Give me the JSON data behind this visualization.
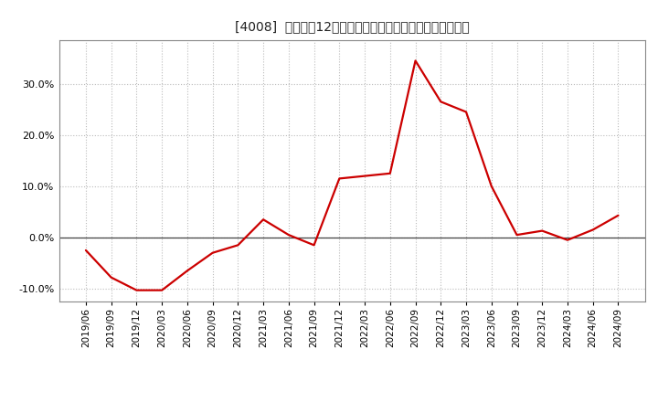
{
  "title": "[4008]  売上高の12か月移動合計の対前年同期増減率の推移",
  "line_color": "#cc0000",
  "background_color": "#ffffff",
  "grid_color": "#bbbbbb",
  "zero_line_color": "#444444",
  "spine_color": "#888888",
  "ylim": [
    -0.125,
    0.385
  ],
  "yticks": [
    -0.1,
    0.0,
    0.1,
    0.2,
    0.3
  ],
  "dates": [
    "2019/06",
    "2019/09",
    "2019/12",
    "2020/03",
    "2020/06",
    "2020/09",
    "2020/12",
    "2021/03",
    "2021/06",
    "2021/09",
    "2021/12",
    "2022/03",
    "2022/06",
    "2022/09",
    "2022/12",
    "2023/03",
    "2023/06",
    "2023/09",
    "2023/12",
    "2024/03",
    "2024/06",
    "2024/09"
  ],
  "values": [
    -0.025,
    -0.078,
    -0.103,
    -0.103,
    -0.065,
    -0.03,
    -0.015,
    0.035,
    0.005,
    -0.015,
    0.115,
    0.12,
    0.125,
    0.345,
    0.265,
    0.245,
    0.1,
    0.005,
    0.013,
    -0.005,
    0.015,
    0.043
  ],
  "title_fontsize": 10.5,
  "tick_fontsize": 8,
  "linewidth": 1.6
}
